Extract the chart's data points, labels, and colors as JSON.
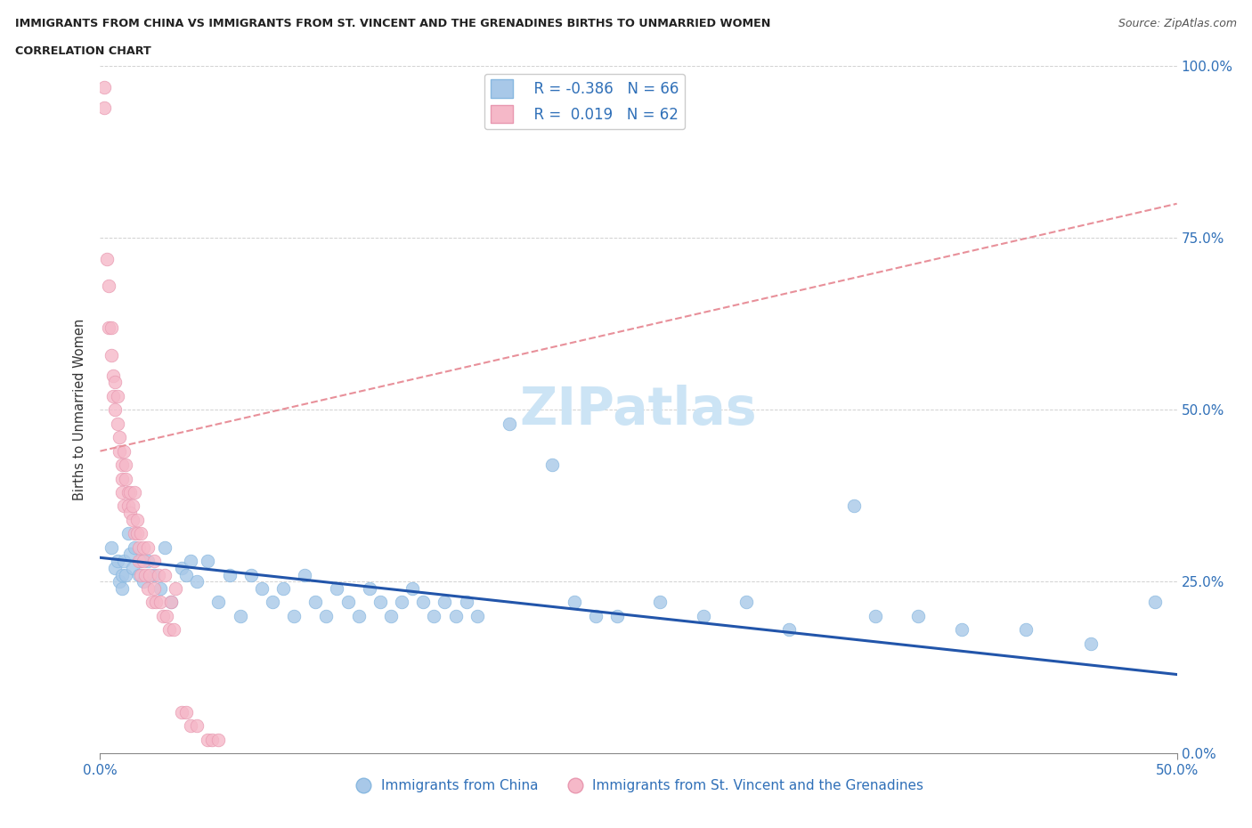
{
  "title_line1": "IMMIGRANTS FROM CHINA VS IMMIGRANTS FROM ST. VINCENT AND THE GRENADINES BIRTHS TO UNMARRIED WOMEN",
  "title_line2": "CORRELATION CHART",
  "source_text": "Source: ZipAtlas.com",
  "ylabel": "Births to Unmarried Women",
  "xmin": 0.0,
  "xmax": 0.5,
  "ymin": 0.0,
  "ymax": 1.0,
  "ytick_values": [
    0.0,
    0.25,
    0.5,
    0.75,
    1.0
  ],
  "ytick_labels": [
    "0.0%",
    "25.0%",
    "50.0%",
    "75.0%",
    "100.0%"
  ],
  "xtick_values": [
    0.0,
    0.5
  ],
  "xtick_labels": [
    "0.0%",
    "50.0%"
  ],
  "blue_R": "-0.386",
  "blue_N": "66",
  "pink_R": "0.019",
  "pink_N": "62",
  "blue_scatter_color": "#a8c8e8",
  "pink_scatter_color": "#f5b8c8",
  "blue_line_color": "#2255aa",
  "pink_line_color": "#e8909a",
  "grid_color": "#cccccc",
  "watermark_color": "#cce4f5",
  "blue_scatter_x": [
    0.005,
    0.007,
    0.008,
    0.009,
    0.01,
    0.01,
    0.011,
    0.012,
    0.013,
    0.014,
    0.015,
    0.016,
    0.018,
    0.019,
    0.02,
    0.022,
    0.025,
    0.028,
    0.03,
    0.033,
    0.038,
    0.04,
    0.042,
    0.045,
    0.05,
    0.055,
    0.06,
    0.065,
    0.07,
    0.075,
    0.08,
    0.085,
    0.09,
    0.095,
    0.1,
    0.105,
    0.11,
    0.115,
    0.12,
    0.125,
    0.13,
    0.135,
    0.14,
    0.145,
    0.15,
    0.155,
    0.16,
    0.165,
    0.17,
    0.175,
    0.19,
    0.21,
    0.22,
    0.23,
    0.24,
    0.26,
    0.28,
    0.3,
    0.32,
    0.35,
    0.36,
    0.38,
    0.4,
    0.43,
    0.46,
    0.49
  ],
  "blue_scatter_y": [
    0.3,
    0.27,
    0.28,
    0.25,
    0.26,
    0.24,
    0.28,
    0.26,
    0.32,
    0.29,
    0.27,
    0.3,
    0.26,
    0.28,
    0.25,
    0.28,
    0.26,
    0.24,
    0.3,
    0.22,
    0.27,
    0.26,
    0.28,
    0.25,
    0.28,
    0.22,
    0.26,
    0.2,
    0.26,
    0.24,
    0.22,
    0.24,
    0.2,
    0.26,
    0.22,
    0.2,
    0.24,
    0.22,
    0.2,
    0.24,
    0.22,
    0.2,
    0.22,
    0.24,
    0.22,
    0.2,
    0.22,
    0.2,
    0.22,
    0.2,
    0.48,
    0.42,
    0.22,
    0.2,
    0.2,
    0.22,
    0.2,
    0.22,
    0.18,
    0.36,
    0.2,
    0.2,
    0.18,
    0.18,
    0.16,
    0.22
  ],
  "pink_scatter_x": [
    0.002,
    0.002,
    0.003,
    0.004,
    0.004,
    0.005,
    0.005,
    0.006,
    0.006,
    0.007,
    0.007,
    0.008,
    0.008,
    0.009,
    0.009,
    0.01,
    0.01,
    0.01,
    0.011,
    0.011,
    0.012,
    0.012,
    0.013,
    0.013,
    0.014,
    0.014,
    0.015,
    0.015,
    0.016,
    0.016,
    0.017,
    0.017,
    0.018,
    0.018,
    0.019,
    0.019,
    0.02,
    0.02,
    0.021,
    0.022,
    0.022,
    0.023,
    0.024,
    0.025,
    0.025,
    0.026,
    0.027,
    0.028,
    0.029,
    0.03,
    0.031,
    0.032,
    0.033,
    0.034,
    0.035,
    0.038,
    0.04,
    0.042,
    0.045,
    0.05,
    0.052,
    0.055
  ],
  "pink_scatter_y": [
    0.97,
    0.94,
    0.72,
    0.62,
    0.68,
    0.58,
    0.62,
    0.55,
    0.52,
    0.5,
    0.54,
    0.48,
    0.52,
    0.46,
    0.44,
    0.42,
    0.4,
    0.38,
    0.44,
    0.36,
    0.4,
    0.42,
    0.38,
    0.36,
    0.35,
    0.38,
    0.34,
    0.36,
    0.32,
    0.38,
    0.32,
    0.34,
    0.3,
    0.28,
    0.32,
    0.26,
    0.3,
    0.28,
    0.26,
    0.3,
    0.24,
    0.26,
    0.22,
    0.28,
    0.24,
    0.22,
    0.26,
    0.22,
    0.2,
    0.26,
    0.2,
    0.18,
    0.22,
    0.18,
    0.24,
    0.06,
    0.06,
    0.04,
    0.04,
    0.02,
    0.02,
    0.02
  ],
  "blue_trend_x": [
    0.0,
    0.5
  ],
  "blue_trend_y": [
    0.285,
    0.115
  ],
  "pink_trend_x": [
    0.0,
    0.5
  ],
  "pink_trend_y": [
    0.44,
    0.8
  ]
}
